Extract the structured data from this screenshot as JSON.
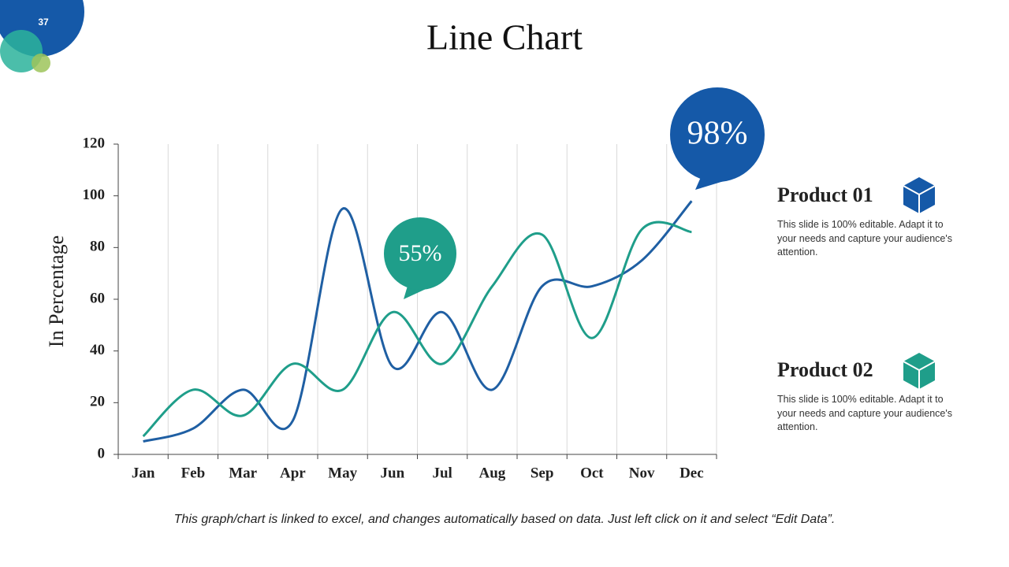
{
  "slide_number": "37",
  "chart_data": {
    "type": "line",
    "title": "Line Chart",
    "y_label": "In Percentage",
    "categories": [
      "Jan",
      "Feb",
      "Mar",
      "Apr",
      "May",
      "Jun",
      "Jul",
      "Aug",
      "Sep",
      "Oct",
      "Nov",
      "Dec"
    ],
    "series": [
      {
        "name": "Product 01",
        "color": "#1f5fa3",
        "values": [
          5,
          10,
          25,
          13,
          95,
          34,
          55,
          25,
          65,
          65,
          75,
          98
        ]
      },
      {
        "name": "Product 02",
        "color": "#1f9e8a",
        "values": [
          7,
          25,
          15,
          35,
          25,
          55,
          35,
          65,
          85,
          45,
          87,
          86
        ]
      }
    ],
    "ylim": [
      0,
      120
    ],
    "yticks": [
      0,
      20,
      40,
      60,
      80,
      100,
      120
    ],
    "grid": true,
    "callouts": [
      "55%",
      "98%"
    ]
  },
  "side_panel": [
    {
      "description": "This slide is 100% editable. Adapt it to your needs and capture your audience's attention."
    },
    {
      "description": "This slide is 100% editable. Adapt it to your needs and capture your audience's attention."
    }
  ],
  "footnote": "This graph/chart is linked to excel, and changes automatically based on data. Just left click on it and select “Edit Data”."
}
